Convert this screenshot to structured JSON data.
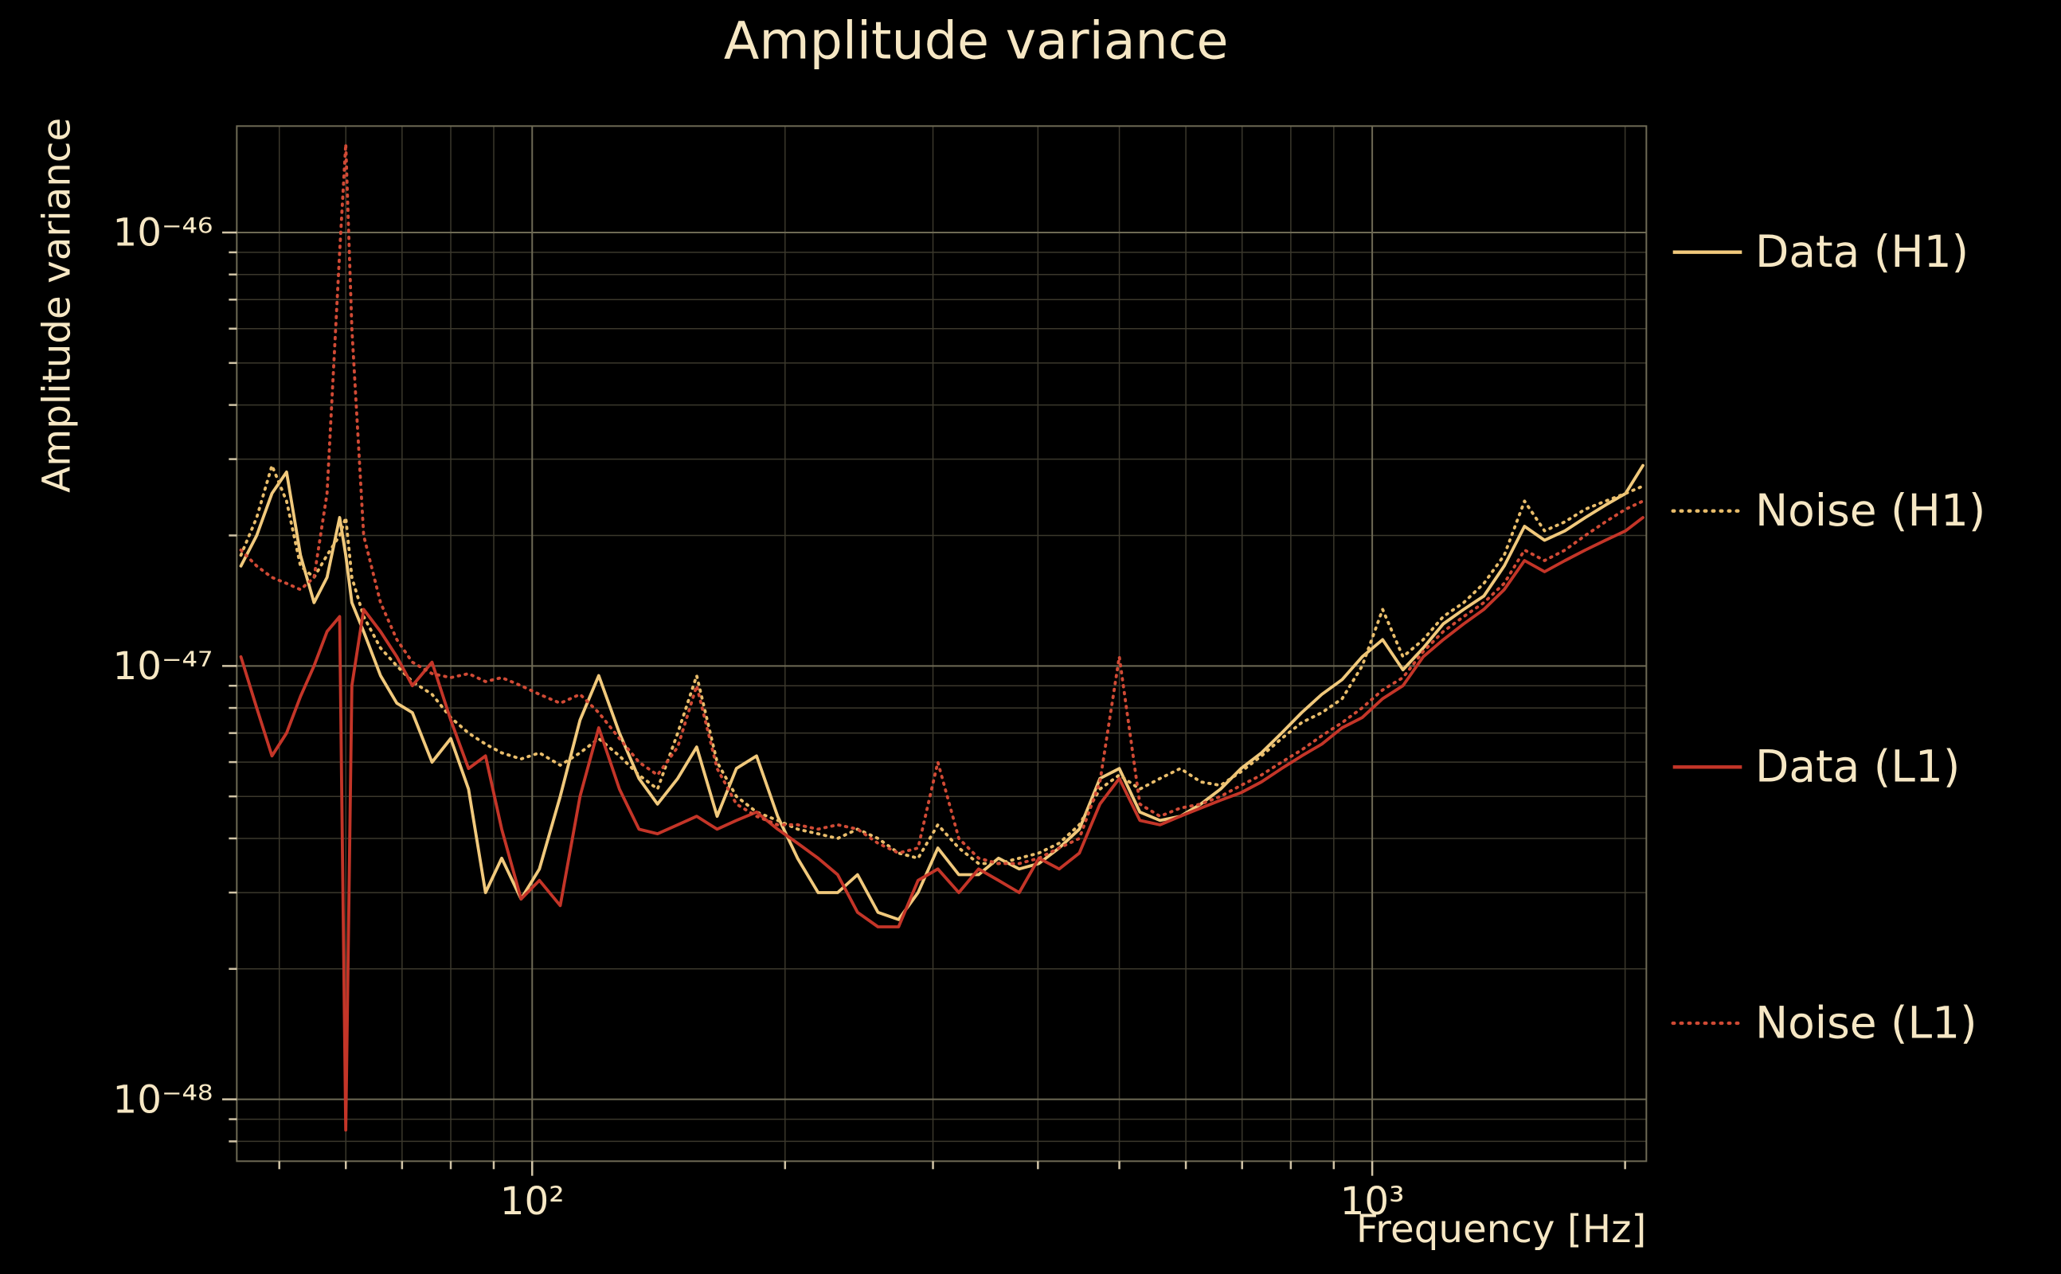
{
  "colors": {
    "background": "#000000",
    "text": "#f6e7c4",
    "grid_major": "#6e6a55",
    "grid_minor": "#3b382c",
    "h1_data": "#f1c97c",
    "h1_noise": "#e9bd6b",
    "l1_data": "#c43528",
    "l1_noise": "#d04a35"
  },
  "chart_data": {
    "type": "line",
    "title": "Amplitude variance",
    "xlabel": "Frequency [Hz]",
    "ylabel": "Amplitude variance",
    "xscale": "log",
    "yscale": "log",
    "xlim": [
      44.5,
      2120
    ],
    "ylim": [
      7.2e-49,
      1.76e-46
    ],
    "grid": {
      "major": true,
      "minor": true
    },
    "legend_position": "outside-right",
    "x_ticks": [
      {
        "value": 100,
        "label": "10²"
      },
      {
        "value": 1000,
        "label": "10³"
      }
    ],
    "y_ticks": [
      {
        "value": 1e-46,
        "label": "10⁻⁴⁶"
      },
      {
        "value": 1e-47,
        "label": "10⁻⁴⁷"
      },
      {
        "value": 1e-48,
        "label": "10⁻⁴⁸"
      }
    ],
    "value_unit": "1e-48",
    "x": [
      45,
      47,
      49,
      51,
      53,
      55,
      57,
      59,
      60,
      61,
      63,
      66,
      69,
      72,
      76,
      80,
      84,
      88,
      92,
      97,
      102,
      108,
      114,
      120,
      127,
      134,
      141,
      149,
      157,
      166,
      175,
      185,
      196,
      207,
      219,
      231,
      244,
      258,
      273,
      288,
      304,
      322,
      340,
      359,
      380,
      401,
      424,
      448,
      474,
      500,
      529,
      559,
      591,
      625,
      660,
      698,
      738,
      780,
      824,
      871,
      921,
      973,
      1029,
      1088,
      1150,
      1215,
      1285,
      1358,
      1436,
      1518,
      1604,
      1696,
      1793,
      1895,
      2003,
      2100
    ],
    "series": [
      {
        "name": "Data (H1)",
        "color": "#f1c97c",
        "line_style": "solid",
        "values_1e48": [
          17,
          20,
          25,
          28,
          18,
          14,
          16,
          22,
          18,
          14,
          12,
          9.5,
          8.2,
          7.8,
          6.0,
          6.8,
          5.2,
          3.0,
          3.6,
          2.9,
          3.4,
          5.0,
          7.5,
          9.5,
          7.0,
          5.5,
          4.8,
          5.5,
          6.5,
          4.5,
          5.8,
          6.2,
          4.5,
          3.6,
          3.0,
          3.0,
          3.3,
          2.7,
          2.6,
          3.0,
          3.8,
          3.3,
          3.3,
          3.6,
          3.4,
          3.5,
          3.8,
          4.2,
          5.5,
          5.8,
          4.6,
          4.4,
          4.5,
          4.8,
          5.2,
          5.8,
          6.3,
          7.0,
          7.8,
          8.6,
          9.3,
          10.5,
          11.5,
          9.8,
          11.0,
          12.5,
          13.5,
          14.5,
          17,
          21,
          19.5,
          20.5,
          22,
          23.5,
          25,
          29
        ]
      },
      {
        "name": "Noise (H1)",
        "color": "#e9bd6b",
        "line_style": "dotted",
        "values_1e48": [
          18,
          22,
          29,
          24,
          17,
          16,
          18,
          20,
          22,
          16,
          13,
          11,
          10,
          9.2,
          8.6,
          7.6,
          7.0,
          6.6,
          6.3,
          6.1,
          6.3,
          5.9,
          6.3,
          6.8,
          6.2,
          5.6,
          5.2,
          7.0,
          9.5,
          6.0,
          5.0,
          4.6,
          4.4,
          4.2,
          4.1,
          4.0,
          4.2,
          4.0,
          3.7,
          3.6,
          4.3,
          3.8,
          3.5,
          3.5,
          3.6,
          3.7,
          3.9,
          4.3,
          5.2,
          5.6,
          5.2,
          5.5,
          5.8,
          5.4,
          5.3,
          5.7,
          6.2,
          6.8,
          7.4,
          7.8,
          8.4,
          10.0,
          13.5,
          10.5,
          11.5,
          13.0,
          14.0,
          15.5,
          18.0,
          24.0,
          20.5,
          21.5,
          23.0,
          24.0,
          25.0,
          26.0
        ]
      },
      {
        "name": "Data (L1)",
        "color": "#c43528",
        "line_style": "solid",
        "values_1e48": [
          10.5,
          8.0,
          6.2,
          7.0,
          8.5,
          10.0,
          12.0,
          13.0,
          0.85,
          9.0,
          13.5,
          12.0,
          10.5,
          9.0,
          10.2,
          7.5,
          5.8,
          6.2,
          4.2,
          2.9,
          3.2,
          2.8,
          5.0,
          7.2,
          5.2,
          4.2,
          4.1,
          4.3,
          4.5,
          4.2,
          4.4,
          4.6,
          4.2,
          3.9,
          3.6,
          3.3,
          2.7,
          2.5,
          2.5,
          3.2,
          3.4,
          3.0,
          3.4,
          3.2,
          3.0,
          3.6,
          3.4,
          3.7,
          4.8,
          5.5,
          4.4,
          4.3,
          4.5,
          4.7,
          4.9,
          5.1,
          5.4,
          5.8,
          6.2,
          6.6,
          7.2,
          7.6,
          8.4,
          9.0,
          10.5,
          11.5,
          12.5,
          13.5,
          15.0,
          17.5,
          16.5,
          17.5,
          18.5,
          19.5,
          20.5,
          22.0
        ]
      },
      {
        "name": "Noise (L1)",
        "color": "#d04a35",
        "line_style": "dotted",
        "values_1e48": [
          18.5,
          17.0,
          16.0,
          15.5,
          15.0,
          16.0,
          25,
          90,
          160,
          60,
          20,
          14,
          11.5,
          10.2,
          9.6,
          9.4,
          9.6,
          9.2,
          9.4,
          9.0,
          8.6,
          8.2,
          8.6,
          7.8,
          6.8,
          6.0,
          5.6,
          6.5,
          9.0,
          5.8,
          4.8,
          4.5,
          4.3,
          4.3,
          4.2,
          4.3,
          4.2,
          3.9,
          3.7,
          3.8,
          6.0,
          4.0,
          3.6,
          3.5,
          3.5,
          3.6,
          3.8,
          4.0,
          5.4,
          10.5,
          4.8,
          4.5,
          4.7,
          4.8,
          5.0,
          5.3,
          5.6,
          6.0,
          6.4,
          6.9,
          7.4,
          8.0,
          8.8,
          9.4,
          10.8,
          12.0,
          13.0,
          14.0,
          15.5,
          18.5,
          17.5,
          18.5,
          20.0,
          21.5,
          23.0,
          24.0
        ]
      }
    ]
  }
}
